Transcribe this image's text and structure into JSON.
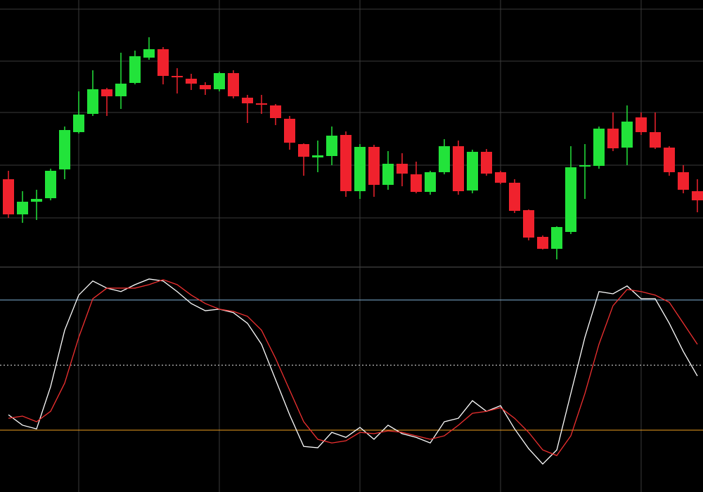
{
  "chart_data": [
    {
      "type": "candlestick",
      "open": [
        125,
        75,
        93,
        98,
        139,
        192,
        218,
        253,
        243,
        262,
        298,
        310,
        272,
        268,
        259,
        253,
        276,
        241,
        233,
        230,
        211,
        175,
        156,
        158,
        188,
        108,
        171,
        117,
        147,
        132,
        107,
        135,
        172,
        109,
        164,
        135,
        120,
        81,
        43,
        26,
        50,
        143,
        144,
        197,
        170,
        213,
        192,
        170,
        135,
        108
      ],
      "high": [
        137,
        108,
        110,
        140,
        200,
        250,
        280,
        255,
        305,
        308,
        327,
        313,
        283,
        275,
        263,
        278,
        280,
        245,
        245,
        232,
        215,
        176,
        180,
        200,
        193,
        175,
        174,
        165,
        162,
        150,
        137,
        182,
        180,
        167,
        168,
        137,
        125,
        82,
        45,
        58,
        172,
        175,
        200,
        220,
        230,
        220,
        220,
        172,
        145,
        125
      ],
      "low": [
        70,
        63,
        67,
        95,
        125,
        190,
        215,
        215,
        225,
        260,
        295,
        260,
        247,
        252,
        245,
        250,
        240,
        205,
        218,
        202,
        167,
        130,
        135,
        145,
        100,
        97,
        100,
        110,
        115,
        105,
        103,
        132,
        103,
        105,
        130,
        118,
        77,
        38,
        25,
        11,
        47,
        97,
        140,
        165,
        145,
        188,
        168,
        130,
        105,
        78
      ],
      "close": [
        75,
        93,
        97,
        137,
        195,
        217,
        253,
        243,
        261,
        300,
        310,
        272,
        270,
        261,
        253,
        276,
        243,
        233,
        231,
        212,
        177,
        157,
        159,
        187,
        108,
        171,
        117,
        147,
        133,
        107,
        135,
        172,
        108,
        164,
        133,
        120,
        80,
        42,
        26,
        57,
        142,
        145,
        197,
        169,
        207,
        192,
        170,
        135,
        110,
        95
      ],
      "up_color": "#22e33a",
      "down_color": "#f0222d",
      "ylim": [
        0,
        380
      ],
      "yticks": [
        70,
        145,
        220,
        293,
        367
      ],
      "xticks": [
        5,
        15,
        25,
        35,
        45
      ],
      "grid": true
    },
    {
      "type": "line",
      "series": [
        {
          "color": "#ffffff",
          "values": [
            27.1,
            22.3,
            20.6,
            40.1,
            66.1,
            82.3,
            88.8,
            85.5,
            83.9,
            87.1,
            89.7,
            88.8,
            83.9,
            78.4,
            75.1,
            75.8,
            74.2,
            69.3,
            59.6,
            43.3,
            27.1,
            12.5,
            11.9,
            19,
            16.7,
            21.3,
            15.8,
            22.3,
            18.4,
            16.7,
            14.1,
            23.9,
            25.5,
            33.6,
            28.7,
            31.3,
            20.6,
            11.5,
            4.4,
            10.9,
            36.9,
            62.8,
            83.9,
            82.9,
            86.5,
            80.6,
            80.6,
            69.3,
            56.3,
            45
          ]
        },
        {
          "color": "#f03030",
          "values": [
            25.5,
            26.5,
            23.9,
            28.7,
            41.7,
            62.8,
            80.6,
            85.5,
            85.5,
            85.5,
            87.1,
            89.4,
            87.1,
            82.3,
            78.4,
            75.8,
            74.8,
            72.5,
            66.1,
            53.1,
            38.5,
            23.9,
            15.8,
            14.1,
            15.1,
            19,
            18.4,
            19.7,
            19,
            17.4,
            15.8,
            17.4,
            22.3,
            27.8,
            28.7,
            30.4,
            25.5,
            19,
            10.9,
            8.3,
            17.4,
            36.9,
            59.6,
            77.4,
            84.9,
            83.9,
            82.3,
            79,
            69.3,
            59.6
          ]
        }
      ],
      "levels": [
        {
          "value": 80,
          "color": "#7fb2d8"
        },
        {
          "value": 50,
          "color": "#dddddd",
          "dashed": true
        },
        {
          "value": 20,
          "color": "#f0a020"
        }
      ],
      "ylim": [
        -8.5,
        95.2
      ],
      "xticks": [
        5,
        15,
        25,
        35,
        45
      ],
      "grid": true
    }
  ]
}
